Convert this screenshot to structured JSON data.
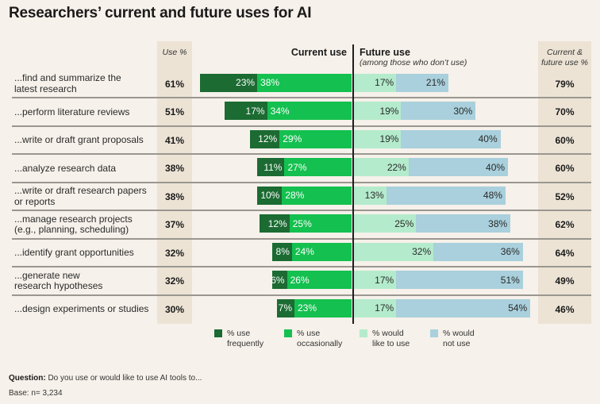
{
  "title": "Researchers’ current and future uses for AI",
  "headers": {
    "use_pct": "Use %",
    "current_use": "Current use",
    "future_use": "Future use",
    "future_use_sub": "(among those who don’t use)",
    "total_line1": "Current &",
    "total_line2": "future use %"
  },
  "colors": {
    "frequently": "#1b6b32",
    "occasionally": "#14c04f",
    "would_like": "#b4ebcc",
    "would_not": "#a9d0dc",
    "shade": "#ece3d5",
    "background": "#f6f1ea"
  },
  "legend": [
    {
      "key": "frequently",
      "line1": "% use",
      "line2": "frequently"
    },
    {
      "key": "occasionally",
      "line1": "% use",
      "line2": "occasionally"
    },
    {
      "key": "would_like",
      "line1": "% would",
      "line2": "like to use"
    },
    {
      "key": "would_not",
      "line1": "% would",
      "line2": "not use"
    }
  ],
  "footer": {
    "question_label": "Question:",
    "question_text": " Do you use or would like to use AI tools to...",
    "base": "Base: n= 3,234"
  },
  "chart_data": {
    "type": "bar",
    "subtype": "diverging-stacked-horizontal",
    "title": "Researchers’ current and future uses for AI",
    "categories": [
      "...find and summarize the latest research",
      "...perform literature reviews",
      "...write or draft grant proposals",
      "...analyze research data",
      "...write or draft research papers or reports",
      "...manage research projects (e.g., planning, scheduling)",
      "...identify grant opportunities",
      "...generate new research hypotheses",
      "...design experiments or studies"
    ],
    "label_lines": [
      [
        "...find and summarize the",
        "latest research"
      ],
      [
        "...perform literature reviews"
      ],
      [
        "...write or draft grant proposals"
      ],
      [
        "...analyze research data"
      ],
      [
        "...write or draft research papers",
        "or reports"
      ],
      [
        "...manage research projects",
        "(e.g., planning, scheduling)"
      ],
      [
        "...identify grant opportunities"
      ],
      [
        "...generate new",
        "research hypotheses"
      ],
      [
        "...design experiments or studies"
      ]
    ],
    "use_pct": [
      "61%",
      "51%",
      "41%",
      "38%",
      "38%",
      "37%",
      "32%",
      "32%",
      "30%"
    ],
    "current_and_future_pct": [
      "79%",
      "70%",
      "60%",
      "60%",
      "52%",
      "62%",
      "64%",
      "49%",
      "46%"
    ],
    "series": [
      {
        "name": "% use frequently",
        "key": "frequently",
        "side": "current",
        "values": [
          23,
          17,
          12,
          11,
          10,
          12,
          8,
          6,
          7
        ]
      },
      {
        "name": "% use occasionally",
        "key": "occasionally",
        "side": "current",
        "values": [
          38,
          34,
          29,
          27,
          28,
          25,
          24,
          26,
          23
        ]
      },
      {
        "name": "% would like to use",
        "key": "would_like",
        "side": "future",
        "values": [
          17,
          19,
          19,
          22,
          13,
          25,
          32,
          17,
          17
        ]
      },
      {
        "name": "% would not use",
        "key": "would_not",
        "side": "future",
        "values": [
          21,
          30,
          40,
          40,
          48,
          38,
          36,
          51,
          54
        ]
      }
    ],
    "value_suffix": "%",
    "xlabel": "",
    "ylabel": "",
    "legend_position": "bottom",
    "grid": false
  }
}
